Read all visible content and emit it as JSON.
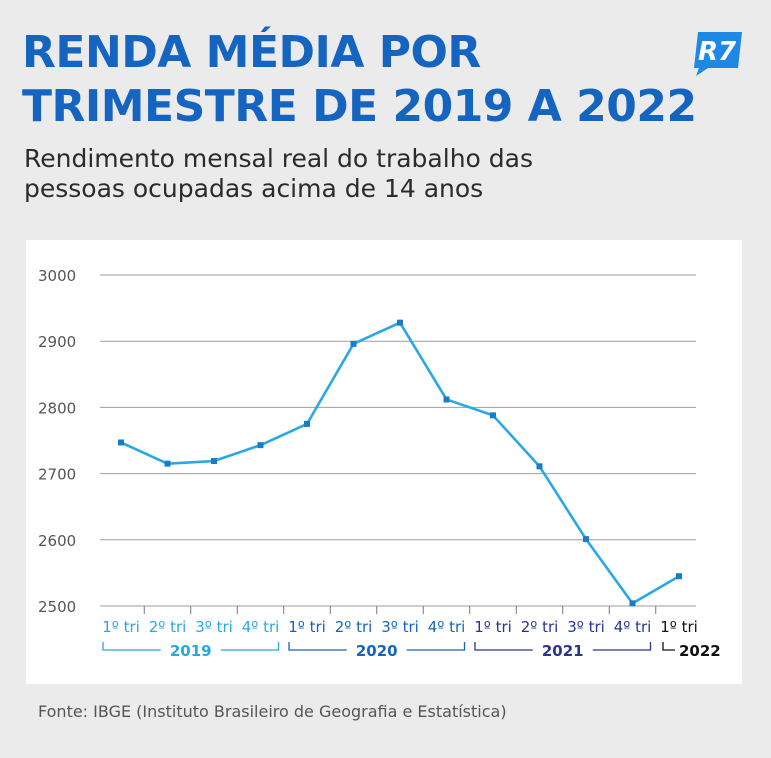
{
  "header": {
    "title_line1": "RENDA MÉDIA POR",
    "title_line2": "TRIMESTRE DE 2019 A 2022",
    "subtitle_line1": "Rendimento mensal real do trabalho das",
    "subtitle_line2": "pessoas ocupadas acima de 14 anos",
    "logo_text": "R7"
  },
  "source": "Fonte: IBGE (Instituto Brasileiro de Geografia e Estatística)",
  "colors": {
    "title": "#1565c0",
    "line": "#2aa8e6",
    "marker": "#1a7cc7",
    "grid": "#9e9e9e",
    "year_2019": "#29a8e0",
    "year_2020": "#1565c0",
    "year_2021": "#283593",
    "year_2022": "#111111",
    "logo": "#1e88e5"
  },
  "chart_data": {
    "type": "line",
    "title": "",
    "xlabel": "",
    "ylabel": "",
    "ylim": [
      2500,
      3000
    ],
    "yticks": [
      3000,
      2900,
      2800,
      2700,
      2600,
      2500
    ],
    "grid": true,
    "categories": [
      "1º tri",
      "2º tri",
      "3º tri",
      "4º tri",
      "1º tri",
      "2º tri",
      "3º tri",
      "4º tri",
      "1º tri",
      "2º tri",
      "3º tri",
      "4º tri",
      "1º tri"
    ],
    "values": [
      2747,
      2715,
      2719,
      2743,
      2775,
      2896,
      2928,
      2812,
      2788,
      2711,
      2601,
      2504,
      2545
    ],
    "year_groups": [
      {
        "label": "2019",
        "start": 0,
        "end": 3,
        "color_key": "year_2019"
      },
      {
        "label": "2020",
        "start": 4,
        "end": 7,
        "color_key": "year_2020"
      },
      {
        "label": "2021",
        "start": 8,
        "end": 11,
        "color_key": "year_2021"
      },
      {
        "label": "2022",
        "start": 12,
        "end": 12,
        "color_key": "year_2022"
      }
    ]
  }
}
